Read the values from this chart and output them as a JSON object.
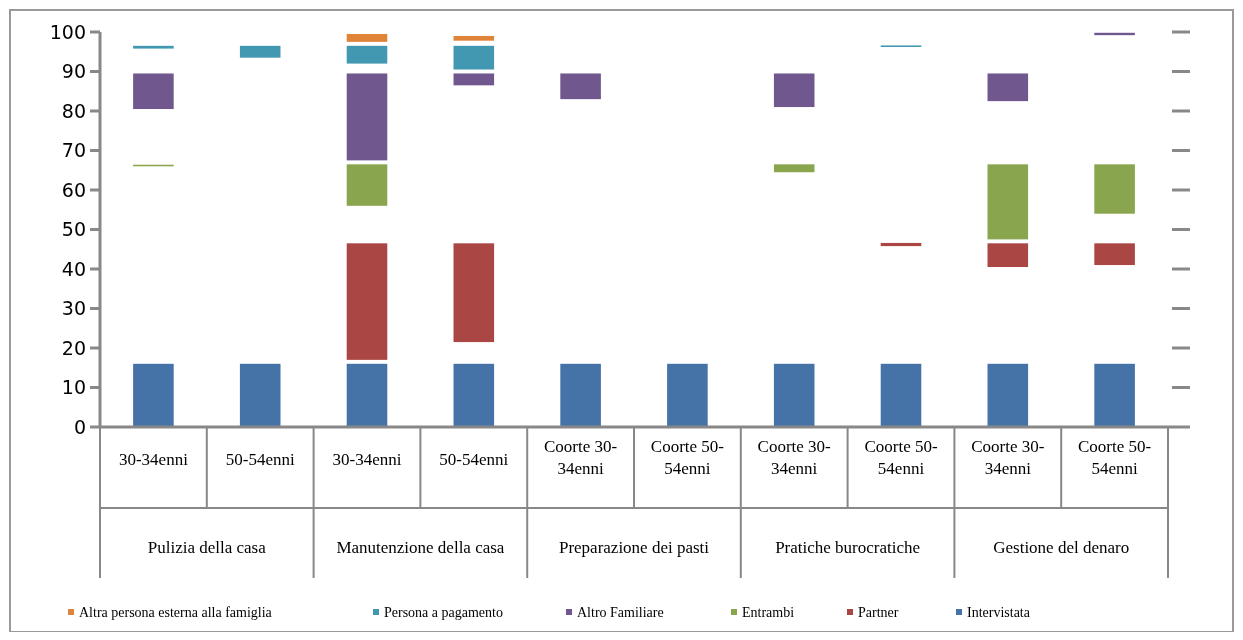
{
  "chart_data": {
    "type": "bar",
    "categories": [
      "30-34enni",
      "50-54enni",
      "30-34enni",
      "50-54enni",
      "Coorte 30-34enni",
      "Coorte 50-54enni",
      "Coorte 30-34enni",
      "Coorte 50-54enni",
      "Coorte 30-34enni",
      "Coorte 50-54enni"
    ],
    "annotations": [
      "Pulizia della casa",
      "Manutenzione della casa",
      "Preparazione dei pasti",
      "Pratiche burocratiche",
      "Gestione del denaro"
    ],
    "ylim": [
      0,
      100
    ],
    "yticks": [
      0,
      10,
      20,
      30,
      40,
      50,
      60,
      70,
      80,
      90,
      100
    ],
    "legend": "bottom",
    "grid": false,
    "series": [
      {
        "name": "Altra persona esterna alla famiglia",
        "color": "#e0843a",
        "values": [
          null,
          null,
          2,
          1.2,
          null,
          null,
          null,
          null,
          null,
          null
        ],
        "base": [
          null,
          null,
          97.5,
          97.8,
          null,
          null,
          null,
          null,
          null,
          null
        ]
      },
      {
        "name": "Persona a pagamento",
        "color": "#4298b0",
        "values": [
          0.7,
          3,
          4.5,
          6,
          null,
          null,
          null,
          0.4,
          null,
          null
        ],
        "base": [
          95.8,
          93.5,
          92,
          90.5,
          null,
          null,
          null,
          96.2,
          null,
          null
        ]
      },
      {
        "name": "Altro Familiare",
        "color": "#70588f",
        "values": [
          9,
          null,
          22,
          3,
          6.5,
          null,
          8.5,
          null,
          7,
          0.6
        ],
        "base": [
          80.5,
          null,
          67.5,
          86.5,
          83,
          null,
          81,
          null,
          82.5,
          99.2
        ]
      },
      {
        "name": "Entrambi",
        "color": "#89a54e",
        "values": [
          0.4,
          null,
          10.5,
          null,
          null,
          null,
          2,
          null,
          19,
          12.5
        ],
        "base": [
          66,
          null,
          56,
          null,
          null,
          null,
          64.5,
          null,
          47.5,
          54
        ]
      },
      {
        "name": "Partner",
        "color": "#aa4644",
        "values": [
          null,
          null,
          29.5,
          25,
          null,
          null,
          null,
          0.8,
          6,
          5.5
        ],
        "base": [
          null,
          null,
          17,
          21.5,
          null,
          null,
          null,
          45.8,
          40.5,
          41
        ]
      },
      {
        "name": "Intervistata",
        "color": "#4572a7",
        "values": [
          16,
          16,
          16,
          16,
          16,
          16,
          16,
          16,
          16,
          16
        ],
        "base": [
          0,
          0,
          0,
          0,
          0,
          0,
          0,
          0,
          0,
          0
        ]
      }
    ]
  }
}
